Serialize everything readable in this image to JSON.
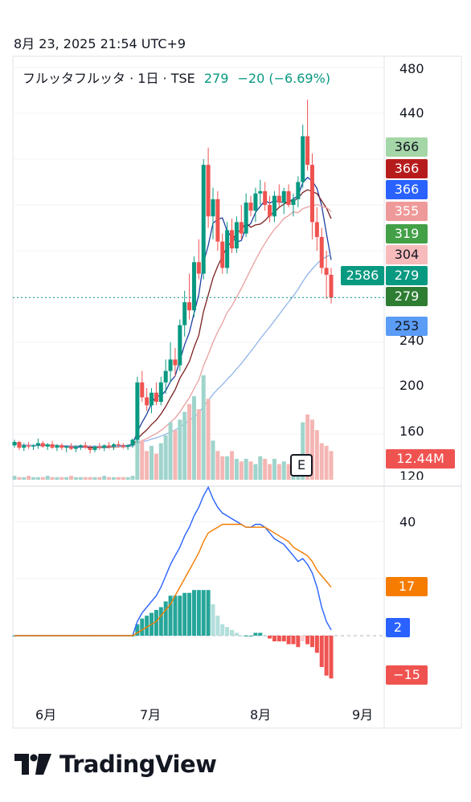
{
  "header": {
    "timestamp": "8月 23, 2025 21:54 UTC+9",
    "symbol": "フルッタフルッタ · 1日 · TSE",
    "price": "279",
    "change": "−20 (−6.69%)"
  },
  "price_axis": {
    "ticks": [
      "480",
      "440",
      "240",
      "200",
      "160",
      "120"
    ]
  },
  "osc_axis": {
    "ticks": [
      "40"
    ]
  },
  "time_axis": {
    "ticks": [
      "6月",
      "7月",
      "8月",
      "9月"
    ]
  },
  "price_tags": [
    {
      "text": "366",
      "color": "#a5d6a7",
      "text_color": "#131722"
    },
    {
      "text": "366",
      "color": "#b71c1c",
      "text_color": "#ffffff"
    },
    {
      "text": "366",
      "color": "#2962ff",
      "text_color": "#ffffff"
    },
    {
      "text": "355",
      "color": "#ef9a9a",
      "text_color": "#ffffff"
    },
    {
      "text": "319",
      "color": "#43a047",
      "text_color": "#ffffff"
    },
    {
      "text": "304",
      "color": "#f8bbbb",
      "text_color": "#131722"
    },
    {
      "text": "279",
      "color": "#089981",
      "text_color": "#ffffff"
    },
    {
      "text": "279",
      "color": "#2e7d32",
      "text_color": "#ffffff"
    },
    {
      "text": "253",
      "color": "#5b9cf6",
      "text_color": "#131722"
    }
  ],
  "volume_tag": {
    "text": "2586",
    "color": "#089981"
  },
  "volume_value_tag": {
    "text": "12.44M",
    "color": "#ef5350"
  },
  "osc_tags": [
    {
      "text": "17",
      "color": "#f57c00"
    },
    {
      "text": "2",
      "color": "#2962ff"
    },
    {
      "text": "−15",
      "color": "#ef5350"
    }
  ],
  "earnings_badge": "E",
  "logo_text": "TradingView",
  "chart_data": {
    "type": "candlestick",
    "title": "フルッタフルッタ · 1日 · TSE",
    "ylim": [
      120,
      480
    ],
    "x_ticks": [
      "6月",
      "7月",
      "8月",
      "9月"
    ],
    "last_close": 279,
    "candles": [
      [
        150,
        155,
        148,
        153
      ],
      [
        153,
        154,
        146,
        148
      ],
      [
        148,
        152,
        145,
        150
      ],
      [
        150,
        153,
        147,
        149
      ],
      [
        149,
        151,
        146,
        150
      ],
      [
        150,
        156,
        147,
        152
      ],
      [
        152,
        154,
        148,
        149
      ],
      [
        149,
        152,
        146,
        151
      ],
      [
        151,
        154,
        147,
        148
      ],
      [
        148,
        151,
        145,
        150
      ],
      [
        150,
        152,
        146,
        148
      ],
      [
        148,
        150,
        144,
        149
      ],
      [
        149,
        152,
        146,
        147
      ],
      [
        147,
        150,
        144,
        149
      ],
      [
        149,
        151,
        146,
        150
      ],
      [
        150,
        153,
        147,
        148
      ],
      [
        148,
        150,
        143,
        146
      ],
      [
        146,
        150,
        144,
        149
      ],
      [
        149,
        152,
        146,
        148
      ],
      [
        148,
        151,
        145,
        150
      ],
      [
        150,
        153,
        147,
        149
      ],
      [
        149,
        152,
        146,
        151
      ],
      [
        151,
        154,
        148,
        150
      ],
      [
        150,
        152,
        147,
        149
      ],
      [
        149,
        151,
        146,
        150
      ],
      [
        150,
        156,
        148,
        155
      ],
      [
        155,
        210,
        152,
        205
      ],
      [
        205,
        215,
        188,
        192
      ],
      [
        192,
        200,
        180,
        185
      ],
      [
        185,
        200,
        178,
        196
      ],
      [
        196,
        205,
        185,
        188
      ],
      [
        188,
        210,
        185,
        205
      ],
      [
        205,
        225,
        195,
        215
      ],
      [
        215,
        240,
        205,
        225
      ],
      [
        225,
        235,
        210,
        220
      ],
      [
        220,
        260,
        215,
        255
      ],
      [
        255,
        285,
        245,
        275
      ],
      [
        275,
        300,
        260,
        268
      ],
      [
        268,
        315,
        262,
        310
      ],
      [
        310,
        330,
        295,
        300
      ],
      [
        300,
        400,
        295,
        395
      ],
      [
        395,
        410,
        340,
        350
      ],
      [
        350,
        375,
        330,
        365
      ],
      [
        365,
        372,
        320,
        328
      ],
      [
        328,
        335,
        300,
        305
      ],
      [
        305,
        345,
        300,
        338
      ],
      [
        338,
        348,
        318,
        322
      ],
      [
        322,
        350,
        318,
        345
      ],
      [
        345,
        360,
        330,
        335
      ],
      [
        335,
        370,
        332,
        362
      ],
      [
        362,
        368,
        350,
        355
      ],
      [
        355,
        375,
        345,
        370
      ],
      [
        370,
        382,
        360,
        372
      ],
      [
        372,
        380,
        355,
        360
      ],
      [
        360,
        368,
        345,
        350
      ],
      [
        350,
        372,
        345,
        368
      ],
      [
        368,
        378,
        358,
        362
      ],
      [
        362,
        375,
        352,
        372
      ],
      [
        372,
        378,
        358,
        360
      ],
      [
        360,
        370,
        350,
        365
      ],
      [
        365,
        385,
        358,
        380
      ],
      [
        380,
        430,
        375,
        420
      ],
      [
        420,
        452,
        390,
        395
      ],
      [
        395,
        405,
        330,
        345
      ],
      [
        345,
        358,
        320,
        332
      ],
      [
        332,
        340,
        300,
        305
      ],
      [
        305,
        320,
        278,
        299
      ],
      [
        299,
        305,
        274,
        279
      ]
    ],
    "volume": [
      3,
      2,
      2,
      3,
      2,
      2,
      2,
      3,
      2,
      2,
      2,
      2,
      3,
      2,
      2,
      2,
      2,
      2,
      2,
      3,
      2,
      2,
      2,
      2,
      2,
      3,
      40,
      30,
      22,
      26,
      20,
      28,
      34,
      44,
      38,
      46,
      52,
      58,
      64,
      54,
      80,
      62,
      30,
      22,
      18,
      18,
      22,
      16,
      14,
      16,
      14,
      12,
      18,
      16,
      12,
      16,
      12,
      14,
      12,
      12,
      16,
      44,
      50,
      46,
      38,
      28,
      26,
      22
    ],
    "macd_line": [
      0,
      0,
      0,
      0,
      0,
      0,
      0,
      0,
      0,
      0,
      0,
      0,
      0,
      0,
      0,
      0,
      0,
      0,
      0,
      0,
      0,
      0,
      0,
      0,
      0,
      0,
      5,
      8,
      10,
      12,
      14,
      17,
      21,
      25,
      28,
      31,
      35,
      38,
      42,
      45,
      49,
      52,
      48,
      45,
      43,
      42,
      41,
      40,
      39,
      38,
      38,
      39,
      39,
      38,
      36,
      34,
      33,
      32,
      30,
      28,
      26,
      27,
      25,
      22,
      17,
      10,
      5,
      2
    ],
    "signal_line": [
      0,
      0,
      0,
      0,
      0,
      0,
      0,
      0,
      0,
      0,
      0,
      0,
      0,
      0,
      0,
      0,
      0,
      0,
      0,
      0,
      0,
      0,
      0,
      0,
      0,
      0,
      1,
      2,
      3,
      4,
      5,
      7,
      9,
      11,
      14,
      17,
      20,
      23,
      26,
      29,
      33,
      36,
      37,
      38,
      39,
      39,
      39,
      39,
      39,
      38,
      38,
      38,
      38,
      38,
      37,
      36,
      35,
      34,
      33,
      31,
      30,
      29,
      28,
      26,
      23,
      21,
      19,
      17
    ],
    "histogram": [
      0,
      0,
      0,
      0,
      0,
      0,
      0,
      0,
      0,
      0,
      0,
      0,
      0,
      0,
      0,
      0,
      0,
      0,
      0,
      0,
      0,
      0,
      0,
      0,
      0,
      0,
      4,
      6,
      7,
      8,
      9,
      10,
      12,
      14,
      14,
      14,
      15,
      15,
      16,
      16,
      16,
      16,
      11,
      7,
      4,
      3,
      2,
      1,
      0,
      0,
      0,
      1,
      1,
      0,
      -1,
      -2,
      -2,
      -2,
      -3,
      -3,
      -4,
      -2,
      -3,
      -4,
      -6,
      -11,
      -14,
      -15
    ]
  }
}
